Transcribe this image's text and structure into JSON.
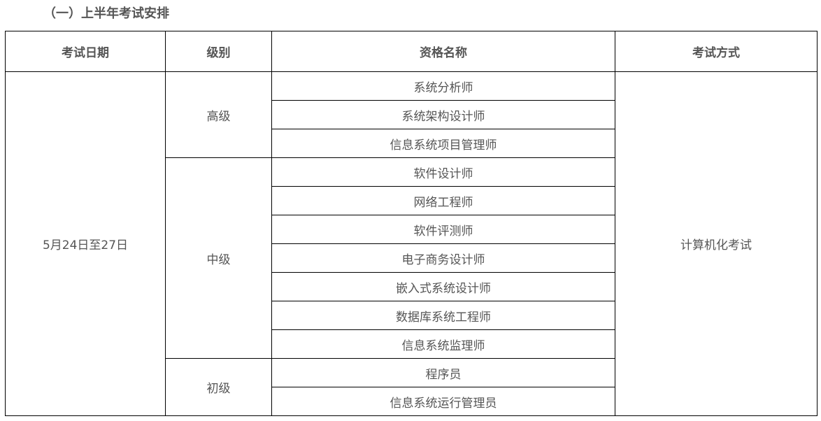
{
  "section_title": "（一）上半年考试安排",
  "table": {
    "headers": [
      "考试日期",
      "级别",
      "资格名称",
      "考试方式"
    ],
    "date": "5月24日至27日",
    "method": "计算机化考试",
    "levels": [
      {
        "level": "高级",
        "qualifications": [
          "系统分析师",
          "系统架构设计师",
          "信息系统项目管理师"
        ]
      },
      {
        "level": "中级",
        "qualifications": [
          "软件设计师",
          "网络工程师",
          "软件评测师",
          "电子商务设计师",
          "嵌入式系统设计师",
          "数据库系统工程师",
          "信息系统监理师"
        ]
      },
      {
        "level": "初级",
        "qualifications": [
          "程序员",
          "信息系统运行管理员"
        ]
      }
    ]
  }
}
